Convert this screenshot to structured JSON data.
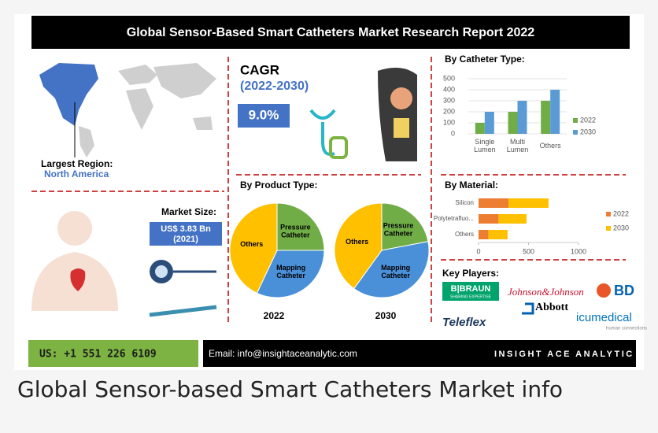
{
  "header": {
    "title": "Global Sensor-Based Smart Catheters Market Research Report 2022"
  },
  "region": {
    "label": "Largest Region:",
    "value": "North America"
  },
  "cagr": {
    "label": "CAGR",
    "period": "(2022-2030)",
    "value": "9.0%"
  },
  "market_size": {
    "label": "Market Size:",
    "value": "US$ 3.83 Bn",
    "year": "(2021)"
  },
  "product_type_title": "By Product Type:",
  "chart_data": [
    {
      "type": "bar",
      "title": "By Catheter Type:",
      "categories": [
        "Single Lumen",
        "Multi Lumen",
        "Others"
      ],
      "series": [
        {
          "name": "2022",
          "color": "#70ad47",
          "values": [
            100,
            200,
            300
          ]
        },
        {
          "name": "2030",
          "color": "#5b9bd5",
          "values": [
            200,
            300,
            400
          ]
        }
      ],
      "ylim": [
        0,
        500
      ],
      "yticks": [
        0,
        100,
        200,
        300,
        400,
        500
      ],
      "grid": true,
      "legend": "right"
    },
    {
      "type": "pie",
      "label": "2022",
      "categories": [
        "Pressure Catheter",
        "Mapping Catheter",
        "Others"
      ],
      "values": [
        25,
        32,
        43
      ],
      "colors": [
        "#70ad47",
        "#4a90d9",
        "#ffc000"
      ]
    },
    {
      "type": "pie",
      "label": "2030",
      "categories": [
        "Pressure Catheter",
        "Mapping Catheter",
        "Others"
      ],
      "values": [
        22,
        38,
        40
      ],
      "colors": [
        "#70ad47",
        "#4a90d9",
        "#ffc000"
      ]
    },
    {
      "type": "hbar",
      "title": "By Material:",
      "categories": [
        "Silicon",
        "Polytetrafluo...",
        "Others"
      ],
      "series": [
        {
          "name": "2022",
          "color": "#ed7d31",
          "values": [
            300,
            200,
            100
          ]
        },
        {
          "name": "2030",
          "color": "#ffc000",
          "values": [
            400,
            280,
            190
          ]
        }
      ],
      "xlim": [
        0,
        1000
      ],
      "xticks": [
        0,
        500,
        1000
      ],
      "stacked": true,
      "legend": "right"
    }
  ],
  "key_players": {
    "title": "Key Players:",
    "braun": "B|BRAUN",
    "braun_tag": "SHARING EXPERTISE",
    "jnj": "Johnson&Johnson",
    "bd": "BD",
    "abbott": "Abbott",
    "teleflex": "Teleflex",
    "icu": "icumedical",
    "icu_tag": "human connections"
  },
  "footer": {
    "phone": "US: +1 551 226 6109",
    "email": "Email: info@insightaceanalytic.com",
    "brand": "INSIGHT ACE ANALYTIC"
  },
  "caption": "Global Sensor-based Smart Catheters Market info"
}
